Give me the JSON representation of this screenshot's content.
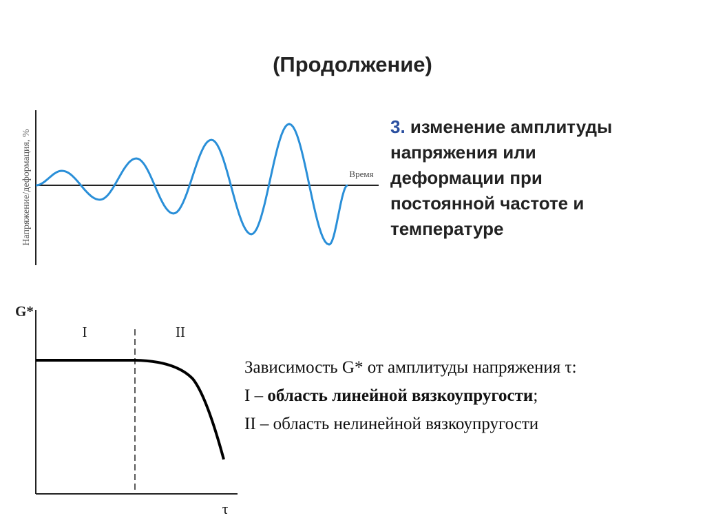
{
  "title": "(Продолжение)",
  "point": {
    "number": "3.",
    "lines": [
      "изменение амплитуды",
      "напряжения или",
      "деформации при",
      "постоянной частоте и",
      "температуре"
    ]
  },
  "wave_diagram": {
    "y_label": "Напряжение/деформация, %",
    "x_label": "Время"
  },
  "modulus_diagram": {
    "y_label": "G*",
    "x_label": "τ",
    "regions": [
      "I",
      "II"
    ]
  },
  "caption": {
    "line1": "Зависимость G* от амплитуды напряжения τ:",
    "line2": {
      "prefix": "I – ",
      "bold": "область линейной вязкоупругости",
      "suffix": ";"
    },
    "line3": "II – область нелинейной вязкоупругости"
  }
}
